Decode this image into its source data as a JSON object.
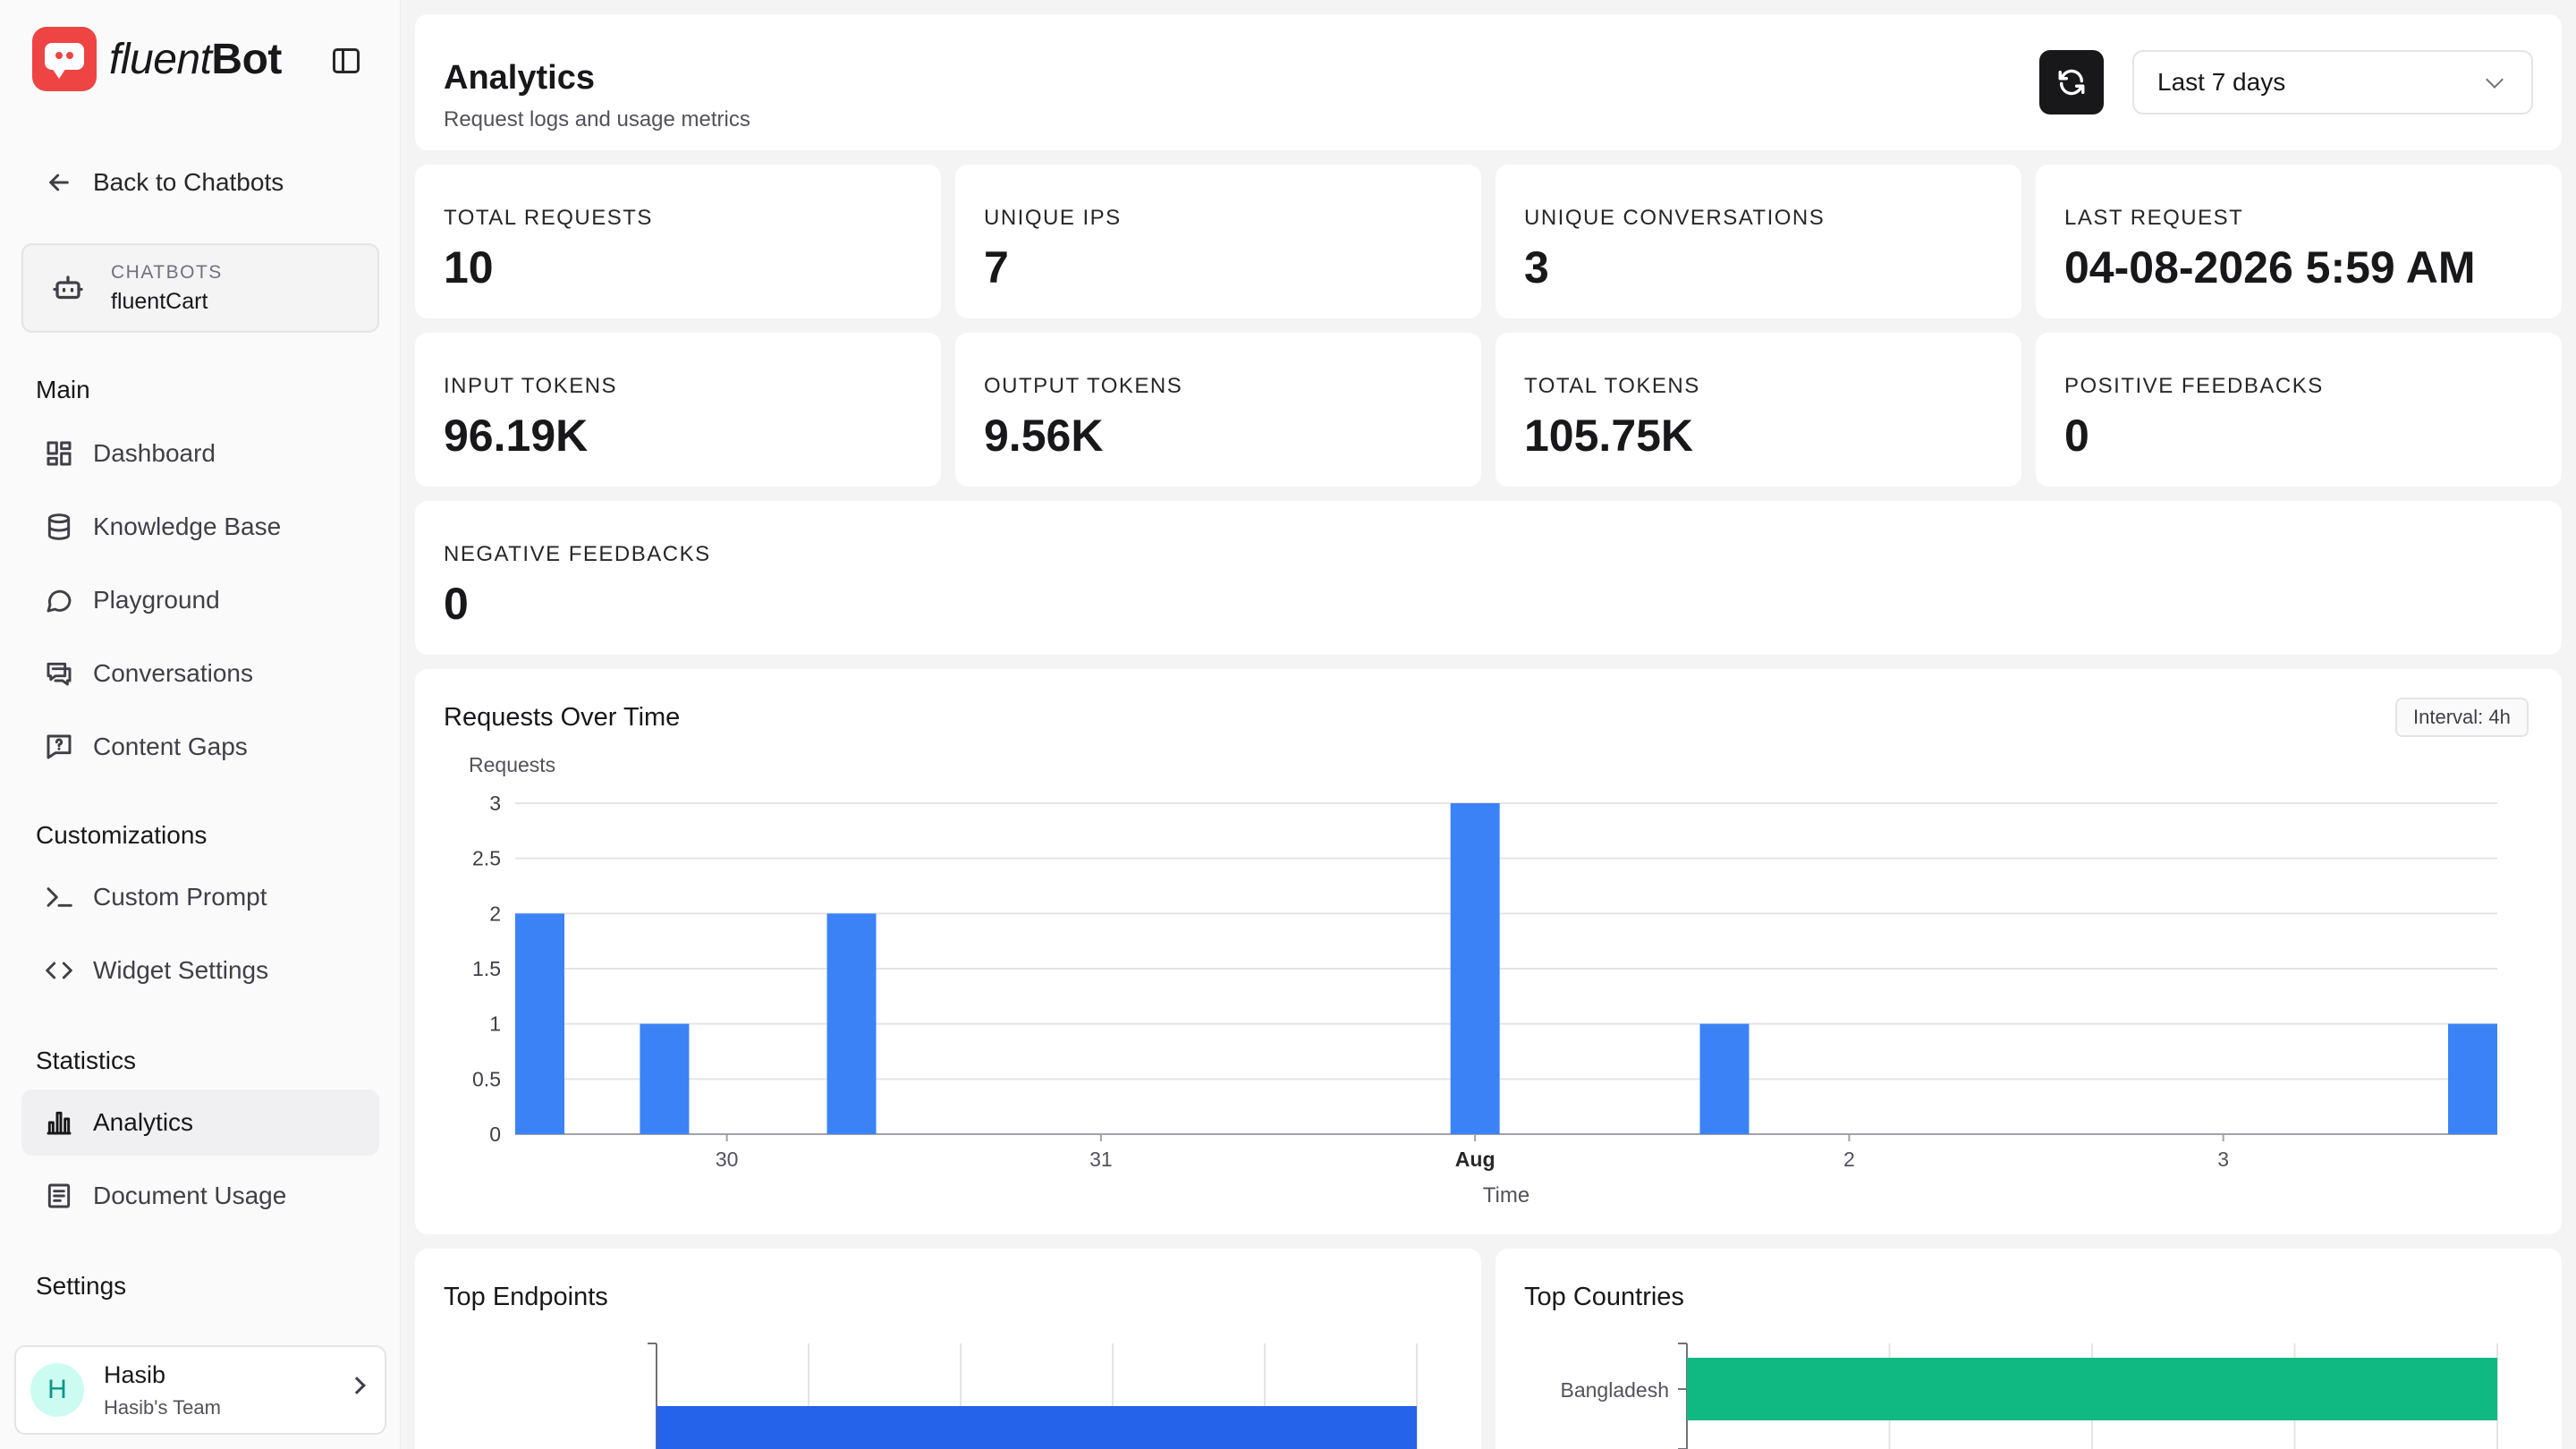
{
  "brand": {
    "name_light": "fluent",
    "name_bold": "Bot"
  },
  "sidebar": {
    "back_label": "Back to Chatbots",
    "bot": {
      "kicker": "CHATBOTS",
      "name": "fluentCart"
    },
    "sections": {
      "main": "Main",
      "customizations": "Customizations",
      "statistics": "Statistics",
      "settings": "Settings"
    },
    "main_items": [
      "Dashboard",
      "Knowledge Base",
      "Playground",
      "Conversations",
      "Content Gaps"
    ],
    "custom_items": [
      "Custom Prompt",
      "Widget Settings"
    ],
    "stat_items": [
      "Analytics",
      "Document Usage"
    ],
    "user": {
      "name": "Hasib",
      "team": "Hasib's Team",
      "initial": "H"
    }
  },
  "header": {
    "title": "Analytics",
    "subtitle": "Request logs and usage metrics",
    "range": "Last 7 days"
  },
  "stats": [
    {
      "label": "TOTAL REQUESTS",
      "value": "10"
    },
    {
      "label": "UNIQUE IPS",
      "value": "7"
    },
    {
      "label": "UNIQUE CONVERSATIONS",
      "value": "3"
    },
    {
      "label": "LAST REQUEST",
      "value": "04-08-2026 5:59 AM"
    },
    {
      "label": "INPUT TOKENS",
      "value": "96.19K"
    },
    {
      "label": "OUTPUT TOKENS",
      "value": "9.56K"
    },
    {
      "label": "TOTAL TOKENS",
      "value": "105.75K"
    },
    {
      "label": "POSITIVE FEEDBACKS",
      "value": "0"
    },
    {
      "label": "NEGATIVE FEEDBACKS",
      "value": "0"
    }
  ],
  "chart_data": [
    {
      "type": "bar",
      "title": "Requests Over Time",
      "badge": "Interval: 4h",
      "ylabel": "Requests",
      "xlabel": "Time",
      "ylim": [
        0,
        3
      ],
      "yticks": [
        "0",
        "0.5",
        "1",
        "1.5",
        "2",
        "2.5",
        "3"
      ],
      "xlim_days": [
        "Jul 29 12:00",
        "Aug 3 16:00"
      ],
      "xticks": [
        {
          "label": "30",
          "at": "Jul 30 00:00",
          "bold": false
        },
        {
          "label": "31",
          "at": "Jul 31 00:00",
          "bold": false
        },
        {
          "label": "Aug",
          "at": "Aug 1 00:00",
          "bold": true
        },
        {
          "label": "2",
          "at": "Aug 2 00:00",
          "bold": false
        },
        {
          "label": "3",
          "at": "Aug 3 00:00",
          "bold": false
        }
      ],
      "x": [
        "Jul 29 12:00",
        "Jul 29 20:00",
        "Jul 30 08:00",
        "Aug 1 00:00",
        "Aug 1 16:00",
        "Aug 3 16:00"
      ],
      "values": [
        2,
        1,
        2,
        3,
        1,
        1
      ],
      "bar_color": "#3b82f6"
    },
    {
      "type": "bar",
      "title": "Top Endpoints",
      "categories": [
        ""
      ],
      "values": [
        1
      ],
      "bar_color": "#2563eb"
    },
    {
      "type": "bar",
      "title": "Top Countries",
      "categories": [
        "Bangladesh"
      ],
      "values": [
        1
      ],
      "bar_color": "#10b981"
    }
  ]
}
